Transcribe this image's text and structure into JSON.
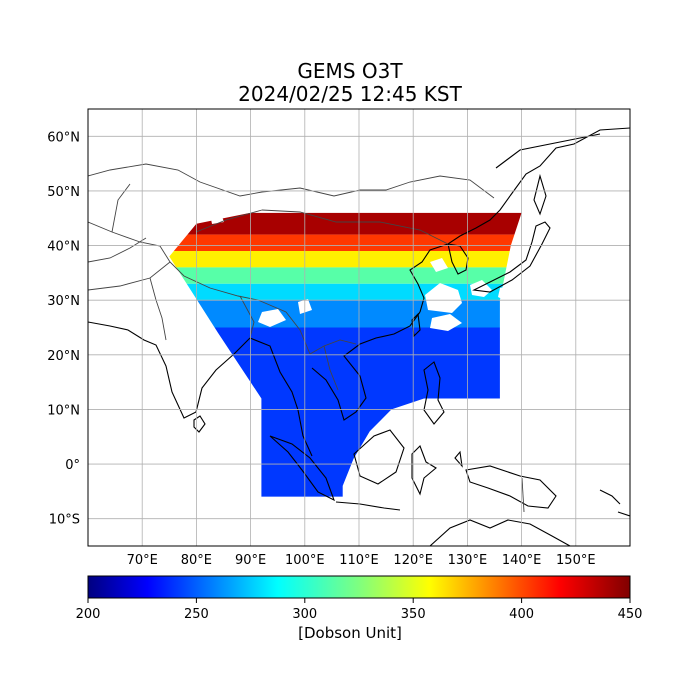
{
  "title": "GEMS O3T",
  "timestamp": "2024/02/25 12:45 KST",
  "map": {
    "lon_range": [
      60,
      160
    ],
    "lat_range": [
      -15,
      65
    ],
    "grid": true,
    "lat_ticks": [
      {
        "value": 60,
        "label": "60°N"
      },
      {
        "value": 50,
        "label": "50°N"
      },
      {
        "value": 40,
        "label": "40°N"
      },
      {
        "value": 30,
        "label": "30°N"
      },
      {
        "value": 20,
        "label": "20°N"
      },
      {
        "value": 10,
        "label": "10°N"
      },
      {
        "value": 0,
        "label": "0°"
      },
      {
        "value": -10,
        "label": "10°S"
      }
    ],
    "lon_ticks": [
      {
        "value": 70,
        "label": "70°E"
      },
      {
        "value": 80,
        "label": "80°E"
      },
      {
        "value": 90,
        "label": "90°E"
      },
      {
        "value": 100,
        "label": "100°E"
      },
      {
        "value": 110,
        "label": "110°E"
      },
      {
        "value": 120,
        "label": "120°E"
      },
      {
        "value": 130,
        "label": "130°E"
      },
      {
        "value": 140,
        "label": "140°E"
      },
      {
        "value": 150,
        "label": "150°E"
      }
    ],
    "field_bands": [
      {
        "lat_min": 42,
        "lat_max": 46,
        "value": 440
      },
      {
        "lat_min": 39,
        "lat_max": 42,
        "value": 405
      },
      {
        "lat_min": 36,
        "lat_max": 39,
        "value": 360
      },
      {
        "lat_min": 33,
        "lat_max": 36,
        "value": 315
      },
      {
        "lat_min": 30,
        "lat_max": 33,
        "value": 285
      },
      {
        "lat_min": 25,
        "lat_max": 30,
        "value": 265
      },
      {
        "lat_min": -6,
        "lat_max": 25,
        "value": 245
      }
    ]
  },
  "colorbar": {
    "min": 200,
    "max": 450,
    "colormap": "jet",
    "ticks": [
      200,
      250,
      300,
      350,
      400,
      450
    ],
    "label": "[Dobson Unit]"
  }
}
